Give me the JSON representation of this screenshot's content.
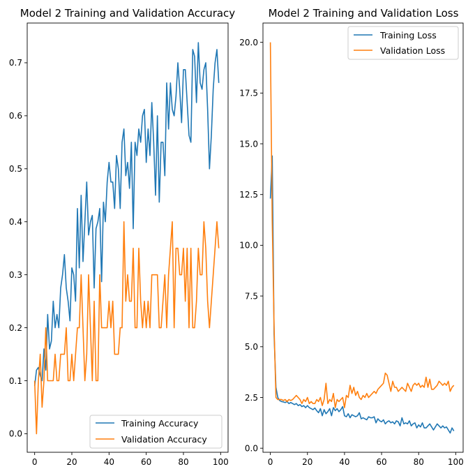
{
  "chart_data": [
    {
      "type": "line",
      "title": "Model 2 Training and Validation Accuracy",
      "xlabel": "",
      "ylabel": "",
      "xlim": [
        -4,
        104
      ],
      "ylim": [
        -0.035,
        0.775
      ],
      "xticks": [
        0,
        20,
        40,
        60,
        80,
        100
      ],
      "yticks": [
        0.0,
        0.1,
        0.2,
        0.3,
        0.4,
        0.5,
        0.6,
        0.7
      ],
      "ytick_labels": [
        "0.0",
        "0.1",
        "0.2",
        "0.3",
        "0.4",
        "0.5",
        "0.6",
        "0.7"
      ],
      "grid": false,
      "legend_position": "lower right",
      "x": [
        0,
        1,
        2,
        3,
        4,
        5,
        6,
        7,
        8,
        9,
        10,
        11,
        12,
        13,
        14,
        15,
        16,
        17,
        18,
        19,
        20,
        21,
        22,
        23,
        24,
        25,
        26,
        27,
        28,
        29,
        30,
        31,
        32,
        33,
        34,
        35,
        36,
        37,
        38,
        39,
        40,
        41,
        42,
        43,
        44,
        45,
        46,
        47,
        48,
        49,
        50,
        51,
        52,
        53,
        54,
        55,
        56,
        57,
        58,
        59,
        60,
        61,
        62,
        63,
        64,
        65,
        66,
        67,
        68,
        69,
        70,
        71,
        72,
        73,
        74,
        75,
        76,
        77,
        78,
        79,
        80,
        81,
        82,
        83,
        84,
        85,
        86,
        87,
        88,
        89,
        90,
        91,
        92,
        93,
        94,
        95,
        96,
        97,
        98,
        99
      ],
      "series": [
        {
          "name": "Training Accuracy",
          "color": "#1f77b4",
          "values": [
            0.09,
            0.12,
            0.125,
            0.11,
            0.1,
            0.16,
            0.12,
            0.225,
            0.16,
            0.175,
            0.25,
            0.2,
            0.225,
            0.2,
            0.275,
            0.3,
            0.338,
            0.275,
            0.25,
            0.213,
            0.313,
            0.3,
            0.25,
            0.425,
            0.313,
            0.45,
            0.325,
            0.4,
            0.475,
            0.375,
            0.4,
            0.412,
            0.275,
            0.387,
            0.4,
            0.425,
            0.287,
            0.437,
            0.4,
            0.475,
            0.512,
            0.475,
            0.475,
            0.425,
            0.525,
            0.5,
            0.425,
            0.55,
            0.575,
            0.487,
            0.512,
            0.463,
            0.55,
            0.387,
            0.55,
            0.525,
            0.575,
            0.55,
            0.6,
            0.612,
            0.512,
            0.575,
            0.525,
            0.625,
            0.55,
            0.45,
            0.6,
            0.437,
            0.55,
            0.55,
            0.487,
            0.662,
            0.575,
            0.662,
            0.612,
            0.6,
            0.637,
            0.7,
            0.65,
            0.587,
            0.687,
            0.687,
            0.625,
            0.563,
            0.55,
            0.725,
            0.712,
            0.625,
            0.738,
            0.662,
            0.65,
            0.687,
            0.7,
            0.612,
            0.5,
            0.563,
            0.65,
            0.7,
            0.725,
            0.662
          ]
        },
        {
          "name": "Validation Accuracy",
          "color": "#ff7f0e",
          "values": [
            0.1,
            0.0,
            0.1,
            0.15,
            0.05,
            0.1,
            0.2,
            0.1,
            0.1,
            0.1,
            0.1,
            0.15,
            0.1,
            0.1,
            0.15,
            0.15,
            0.15,
            0.2,
            0.1,
            0.1,
            0.15,
            0.1,
            0.15,
            0.2,
            0.2,
            0.3,
            0.2,
            0.1,
            0.15,
            0.3,
            0.2,
            0.1,
            0.25,
            0.1,
            0.1,
            0.3,
            0.2,
            0.2,
            0.2,
            0.2,
            0.25,
            0.2,
            0.25,
            0.15,
            0.15,
            0.15,
            0.2,
            0.2,
            0.4,
            0.25,
            0.3,
            0.25,
            0.25,
            0.35,
            0.2,
            0.2,
            0.35,
            0.25,
            0.2,
            0.25,
            0.2,
            0.25,
            0.2,
            0.3,
            0.3,
            0.3,
            0.3,
            0.2,
            0.2,
            0.25,
            0.3,
            0.2,
            0.3,
            0.35,
            0.4,
            0.2,
            0.35,
            0.35,
            0.3,
            0.3,
            0.35,
            0.25,
            0.35,
            0.2,
            0.35,
            0.2,
            0.2,
            0.25,
            0.35,
            0.3,
            0.3,
            0.4,
            0.35,
            0.25,
            0.2,
            0.25,
            0.3,
            0.35,
            0.4,
            0.35
          ]
        }
      ]
    },
    {
      "type": "line",
      "title": "Model 2 Training and Validation Loss",
      "xlabel": "",
      "ylabel": "",
      "xlim": [
        -4,
        104
      ],
      "ylim": [
        -0.2,
        20.95
      ],
      "xticks": [
        0,
        20,
        40,
        60,
        80,
        100
      ],
      "yticks": [
        0.0,
        2.5,
        5.0,
        7.5,
        10.0,
        12.5,
        15.0,
        17.5,
        20.0
      ],
      "ytick_labels": [
        "0.0",
        "2.5",
        "5.0",
        "7.5",
        "10.0",
        "12.5",
        "15.0",
        "17.5",
        "20.0"
      ],
      "grid": false,
      "legend_position": "upper right",
      "x": [
        0,
        1,
        2,
        3,
        4,
        5,
        6,
        7,
        8,
        9,
        10,
        11,
        12,
        13,
        14,
        15,
        16,
        17,
        18,
        19,
        20,
        21,
        22,
        23,
        24,
        25,
        26,
        27,
        28,
        29,
        30,
        31,
        32,
        33,
        34,
        35,
        36,
        37,
        38,
        39,
        40,
        41,
        42,
        43,
        44,
        45,
        46,
        47,
        48,
        49,
        50,
        51,
        52,
        53,
        54,
        55,
        56,
        57,
        58,
        59,
        60,
        61,
        62,
        63,
        64,
        65,
        66,
        67,
        68,
        69,
        70,
        71,
        72,
        73,
        74,
        75,
        76,
        77,
        78,
        79,
        80,
        81,
        82,
        83,
        84,
        85,
        86,
        87,
        88,
        89,
        90,
        91,
        92,
        93,
        94,
        95,
        96,
        97,
        98,
        99
      ],
      "series": [
        {
          "name": "Training Loss",
          "color": "#1f77b4",
          "values": [
            12.3,
            14.4,
            5.6,
            3.0,
            2.5,
            2.35,
            2.3,
            2.28,
            2.25,
            2.3,
            2.2,
            2.25,
            2.2,
            2.15,
            2.2,
            2.1,
            2.15,
            2.05,
            2.1,
            2.0,
            2.1,
            2.0,
            1.95,
            1.9,
            1.98,
            1.85,
            1.75,
            1.95,
            1.6,
            1.9,
            1.7,
            1.8,
            1.95,
            1.6,
            2.0,
            1.85,
            1.95,
            1.8,
            1.9,
            2.05,
            1.6,
            1.55,
            1.7,
            1.5,
            1.65,
            1.6,
            1.55,
            1.6,
            1.75,
            1.45,
            1.5,
            1.45,
            1.4,
            1.55,
            1.5,
            1.5,
            1.55,
            1.25,
            1.45,
            1.35,
            1.3,
            1.4,
            1.2,
            1.3,
            1.35,
            1.25,
            1.3,
            1.2,
            1.35,
            1.3,
            1.1,
            1.5,
            1.2,
            1.25,
            1.2,
            1.35,
            1.1,
            1.2,
            1.25,
            1.0,
            1.15,
            1.05,
            1.25,
            1.0,
            1.0,
            1.1,
            1.2,
            1.05,
            0.9,
            1.05,
            1.2,
            1.1,
            1.0,
            1.1,
            1.0,
            1.05,
            0.9,
            0.75,
            1.0,
            0.85
          ]
        },
        {
          "name": "Validation Loss",
          "color": "#ff7f0e",
          "values": [
            20.0,
            11.2,
            6.0,
            2.5,
            2.4,
            2.4,
            2.4,
            2.35,
            2.4,
            2.3,
            2.4,
            2.35,
            2.4,
            2.5,
            2.6,
            2.5,
            2.4,
            2.2,
            2.4,
            2.3,
            2.5,
            2.2,
            2.3,
            2.2,
            2.2,
            2.4,
            2.3,
            2.5,
            2.1,
            2.4,
            3.2,
            2.2,
            2.4,
            2.3,
            2.7,
            2.0,
            2.4,
            2.3,
            2.4,
            2.5,
            2.0,
            2.6,
            2.5,
            3.1,
            2.7,
            3.0,
            2.6,
            2.8,
            2.5,
            2.4,
            2.6,
            2.5,
            2.7,
            2.5,
            2.6,
            2.7,
            2.8,
            2.7,
            2.9,
            3.0,
            3.1,
            3.2,
            3.7,
            3.6,
            3.2,
            2.8,
            3.3,
            3.0,
            3.0,
            2.8,
            2.9,
            3.0,
            2.9,
            2.8,
            3.2,
            3.0,
            2.8,
            3.1,
            3.2,
            3.1,
            3.2,
            3.0,
            3.1,
            3.0,
            3.5,
            3.0,
            3.4,
            2.9,
            2.9,
            3.0,
            3.1,
            3.3,
            3.2,
            3.1,
            3.2,
            3.1,
            3.3,
            2.8,
            3.0,
            3.1
          ]
        }
      ]
    }
  ]
}
